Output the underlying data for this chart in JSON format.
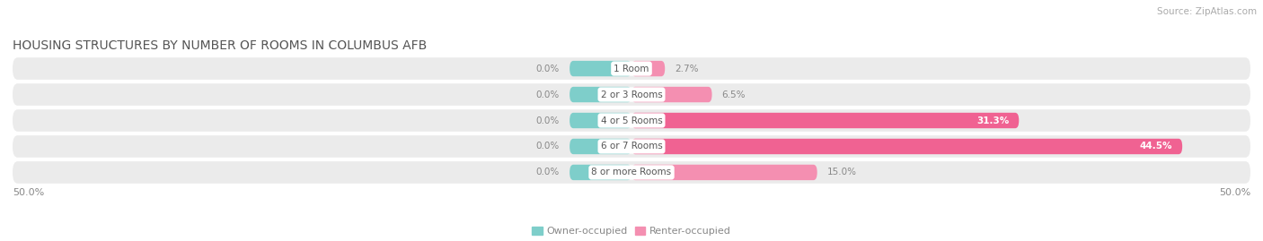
{
  "title": "HOUSING STRUCTURES BY NUMBER OF ROOMS IN COLUMBUS AFB",
  "source": "Source: ZipAtlas.com",
  "categories": [
    "1 Room",
    "2 or 3 Rooms",
    "4 or 5 Rooms",
    "6 or 7 Rooms",
    "8 or more Rooms"
  ],
  "owner_values": [
    0.0,
    0.0,
    0.0,
    0.0,
    0.0
  ],
  "renter_values": [
    2.7,
    6.5,
    31.3,
    44.5,
    15.0
  ],
  "owner_color": "#7ECECA",
  "renter_color": "#F48FB1",
  "renter_color_dark": "#F06292",
  "bar_bg_color": "#EBEBEB",
  "axis_max": 50.0,
  "axis_min": -50.0,
  "fig_bg_color": "#FFFFFF",
  "title_fontsize": 10,
  "source_fontsize": 7.5,
  "label_fontsize": 7.5,
  "tick_fontsize": 8,
  "legend_fontsize": 8,
  "white_label_threshold": 20.0
}
